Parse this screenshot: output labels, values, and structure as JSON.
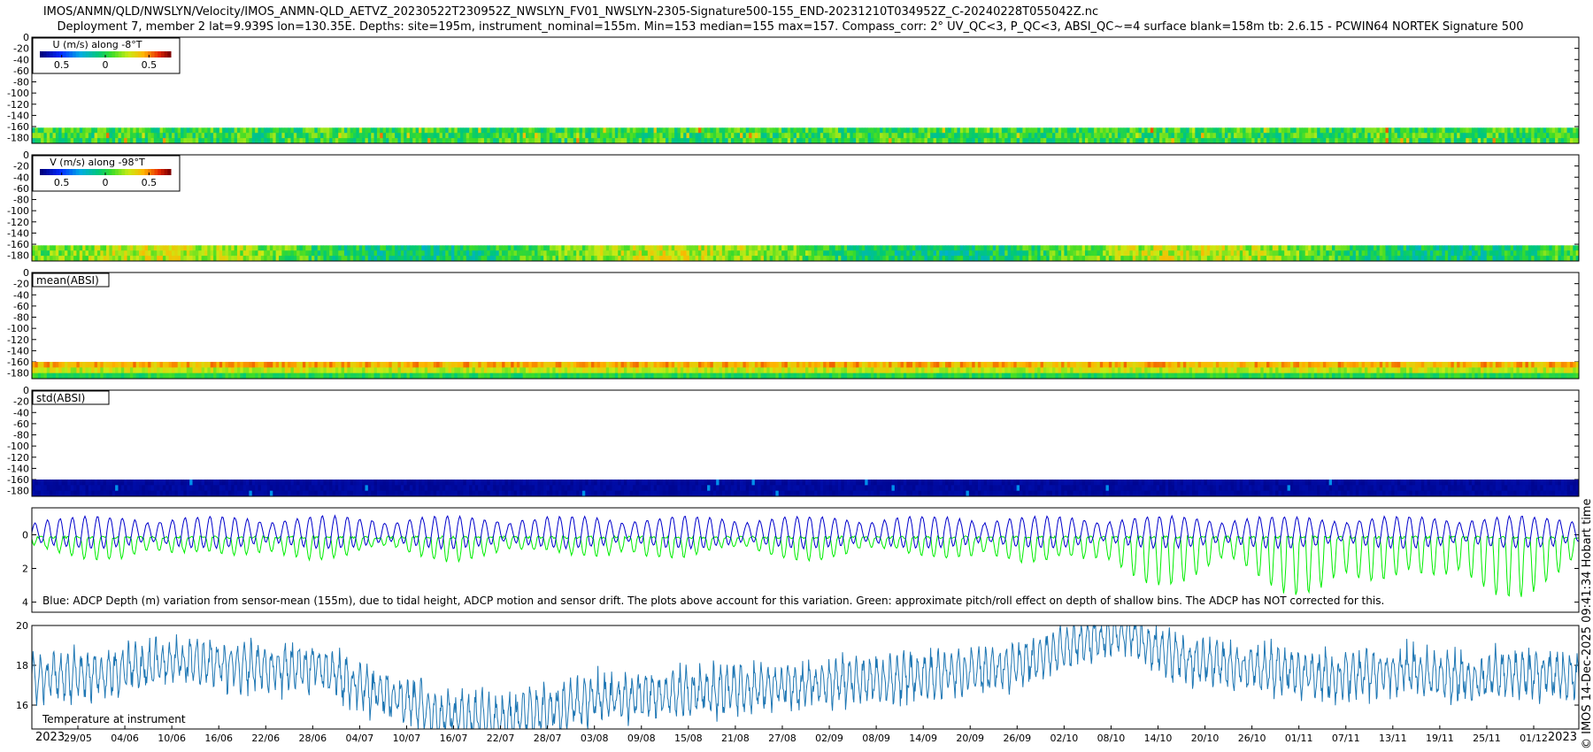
{
  "title_line1": "IMOS/ANMN/QLD/NWSLYN/Velocity/IMOS_ANMN-QLD_AETVZ_20230522T230952Z_NWSLYN_FV01_NWSLYN-2305-Signature500-155_END-20231210T034952Z_C-20240228T055042Z.nc",
  "title_line2": "Deployment 7, member 2 lat=9.939S lon=130.35E. Depths: site=195m, instrument_nominal=155m. Min=153 median=155 max=157. Compass_corr: 2° UV_QC<3, P_QC<3, ABSI_QC~=4 surface blank=158m tb: 2.6.15 - PCWIN64 NORTEK Signature 500",
  "credit": "© IMOS 14-Dec-2025 09:41:34 Hobart time",
  "colors": {
    "blue_depth": "#0000cc",
    "green_pitch": "#00ee00",
    "temperature": "#1f77b4",
    "cbar_low": "#00007f",
    "cbar_mid": "#2ecc40",
    "cbar_high": "#8b0000"
  },
  "chart_data": [
    {
      "type": "heatmap",
      "label": "U (m/s) along -8°T",
      "yticks": [
        "0",
        "-20",
        "-40",
        "-60",
        "-80",
        "-100",
        "-120",
        "-140",
        "-160",
        "-180"
      ],
      "ylim": [
        -190,
        0
      ],
      "data_depth_range": [
        -190,
        -162
      ],
      "colorbar_ticks": [
        "0.5",
        "0",
        "0.5"
      ],
      "colorbar_range": [
        -0.75,
        0.75
      ],
      "dominant_value": 0.0
    },
    {
      "type": "heatmap",
      "label": "V (m/s) along -98°T",
      "yticks": [
        "0",
        "-20",
        "-40",
        "-60",
        "-80",
        "-100",
        "-120",
        "-140",
        "-160",
        "-180"
      ],
      "ylim": [
        -190,
        0
      ],
      "data_depth_range": [
        -190,
        -162
      ],
      "colorbar_ticks": [
        "0.5",
        "0",
        "0.5"
      ],
      "colorbar_range": [
        -0.75,
        0.75
      ],
      "dominant_value": 0.1
    },
    {
      "type": "heatmap",
      "label": "mean(ABSI)",
      "yticks": [
        "0",
        "-20",
        "-40",
        "-60",
        "-80",
        "-100",
        "-120",
        "-140",
        "-160",
        "-180"
      ],
      "ylim": [
        -190,
        0
      ],
      "data_depth_range": [
        -190,
        -160
      ]
    },
    {
      "type": "heatmap",
      "label": "std(ABSI)",
      "yticks": [
        "0",
        "-20",
        "-40",
        "-60",
        "-80",
        "-100",
        "-120",
        "-140",
        "-160",
        "-180"
      ],
      "ylim": [
        -190,
        0
      ],
      "data_depth_range": [
        -190,
        -160
      ]
    },
    {
      "type": "line",
      "caption": "Blue: ADCP Depth (m) variation from sensor-mean (155m), due to tidal height, ADCP motion and sensor drift. The plots above account for this variation. Green: approximate pitch/roll effect on depth of shallow bins. The ADCP has NOT corrected for this.",
      "yticks": [
        "0",
        "2",
        "4"
      ],
      "ylim": [
        -1.6,
        4.6
      ],
      "y_reversed": true,
      "series": [
        {
          "color": "blue",
          "mean": 0.0,
          "amplitude": 1.0
        },
        {
          "color": "green",
          "mean": 0.3,
          "amplitude": 1.5
        }
      ]
    },
    {
      "type": "line",
      "caption": "Temperature at instrument",
      "yticks": [
        "16",
        "18",
        "20"
      ],
      "ylim": [
        14.8,
        20.0
      ],
      "x_start_label": "2023",
      "x_end_label": "2023",
      "xticks": [
        "29/05",
        "04/06",
        "10/06",
        "16/06",
        "22/06",
        "28/06",
        "04/07",
        "10/07",
        "16/07",
        "22/07",
        "28/07",
        "03/08",
        "09/08",
        "15/08",
        "21/08",
        "27/08",
        "02/09",
        "08/09",
        "14/09",
        "20/09",
        "26/09",
        "02/10",
        "08/10",
        "14/10",
        "20/10",
        "26/10",
        "01/11",
        "07/11",
        "13/11",
        "19/11",
        "25/11",
        "01/12"
      ],
      "trend": [
        [
          0,
          17.4
        ],
        [
          4,
          17.6
        ],
        [
          8,
          18.2
        ],
        [
          12,
          18.0
        ],
        [
          14,
          17.8
        ],
        [
          16,
          18.0
        ],
        [
          18,
          17.2
        ],
        [
          20,
          16.5
        ],
        [
          22,
          16.0
        ],
        [
          23,
          15.5
        ],
        [
          26,
          15.3
        ],
        [
          29,
          15.6
        ],
        [
          32,
          16.3
        ],
        [
          36,
          16.6
        ],
        [
          40,
          16.8
        ],
        [
          44,
          17.0
        ],
        [
          48,
          17.3
        ],
        [
          52,
          17.6
        ],
        [
          56,
          18.0
        ],
        [
          58,
          18.6
        ],
        [
          60,
          19.4
        ],
        [
          62,
          19.7
        ],
        [
          64,
          18.8
        ],
        [
          66,
          18.2
        ],
        [
          70,
          17.8
        ],
        [
          74,
          17.4
        ],
        [
          78,
          17.8
        ],
        [
          80,
          17.5
        ],
        [
          82,
          17.3
        ],
        [
          84,
          17.6
        ],
        [
          86,
          17.5
        ],
        [
          87.8,
          17.4
        ]
      ]
    }
  ]
}
